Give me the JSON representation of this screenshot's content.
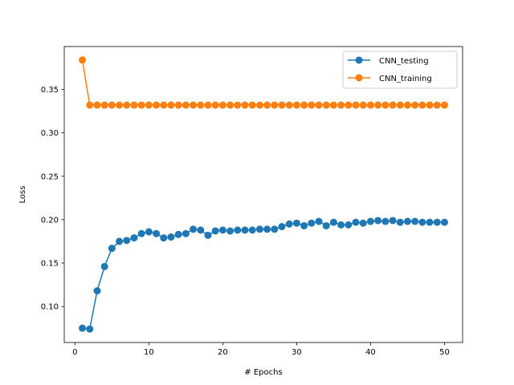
{
  "chart_data": {
    "type": "line",
    "title": "",
    "xlabel": "# Epochs",
    "ylabel": "Loss",
    "xlim": [
      -1.45,
      52.45
    ],
    "ylim": [
      0.0585,
      0.3995
    ],
    "xticks": [
      0,
      10,
      20,
      30,
      40,
      50
    ],
    "yticks": [
      0.1,
      0.15,
      0.2,
      0.25,
      0.3,
      0.35
    ],
    "ytick_labels": [
      "0.10",
      "0.15",
      "0.20",
      "0.25",
      "0.30",
      "0.35"
    ],
    "grid": false,
    "legend_position": "top-right",
    "x": [
      1,
      2,
      3,
      4,
      5,
      6,
      7,
      8,
      9,
      10,
      11,
      12,
      13,
      14,
      15,
      16,
      17,
      18,
      19,
      20,
      21,
      22,
      23,
      24,
      25,
      26,
      27,
      28,
      29,
      30,
      31,
      32,
      33,
      34,
      35,
      36,
      37,
      38,
      39,
      40,
      41,
      42,
      43,
      44,
      45,
      46,
      47,
      48,
      49,
      50
    ],
    "series": [
      {
        "name": "CNN_testing",
        "color": "#1f77b4",
        "marker": "circle",
        "values": [
          0.075,
          0.074,
          0.118,
          0.146,
          0.167,
          0.175,
          0.176,
          0.179,
          0.184,
          0.186,
          0.184,
          0.179,
          0.18,
          0.183,
          0.184,
          0.189,
          0.188,
          0.182,
          0.187,
          0.188,
          0.187,
          0.188,
          0.188,
          0.188,
          0.189,
          0.189,
          0.189,
          0.192,
          0.195,
          0.196,
          0.193,
          0.196,
          0.198,
          0.193,
          0.197,
          0.194,
          0.194,
          0.197,
          0.196,
          0.198,
          0.199,
          0.198,
          0.199,
          0.197,
          0.198,
          0.198,
          0.197,
          0.197,
          0.197,
          0.197
        ]
      },
      {
        "name": "CNN_training",
        "color": "#ff7f0e",
        "marker": "circle",
        "values": [
          0.384,
          0.332,
          0.332,
          0.332,
          0.332,
          0.332,
          0.332,
          0.332,
          0.332,
          0.332,
          0.332,
          0.332,
          0.332,
          0.332,
          0.332,
          0.332,
          0.332,
          0.332,
          0.332,
          0.332,
          0.332,
          0.332,
          0.332,
          0.332,
          0.332,
          0.332,
          0.332,
          0.332,
          0.332,
          0.332,
          0.332,
          0.332,
          0.332,
          0.332,
          0.332,
          0.332,
          0.332,
          0.332,
          0.332,
          0.332,
          0.332,
          0.332,
          0.332,
          0.332,
          0.332,
          0.332,
          0.332,
          0.332,
          0.332,
          0.332
        ]
      }
    ]
  }
}
